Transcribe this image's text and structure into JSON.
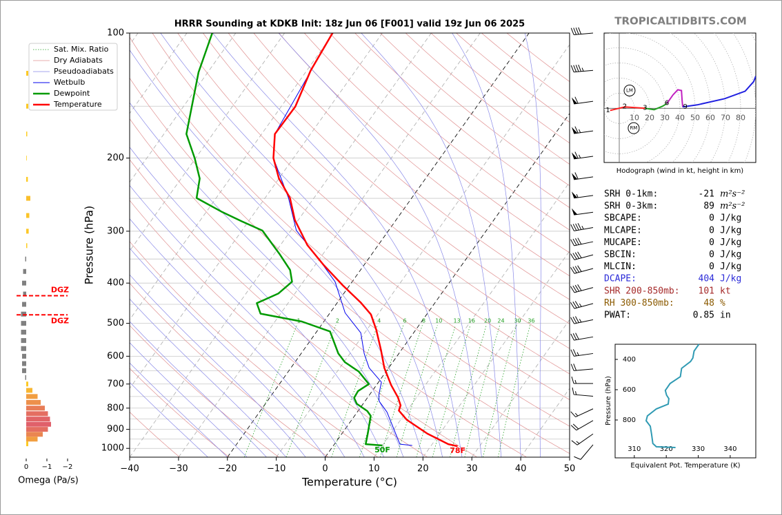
{
  "header": {
    "site": "TROPICALTIDBITS.COM"
  },
  "chart_data": [
    {
      "type": "skewt",
      "title": "HRRR Sounding at KDKB Init: 18z Jun 06 [F001] valid 19z Jun 06 2025",
      "xlabel": "Temperature (°C)",
      "ylabel": "Pressure (hPa)",
      "xlim": [
        -40,
        50
      ],
      "xticks": [
        {
          "value": -40,
          "label": "−40"
        },
        {
          "value": -30,
          "label": "−30"
        },
        {
          "value": -20,
          "label": "−20"
        },
        {
          "value": -10,
          "label": "−10"
        },
        0,
        10,
        20,
        30,
        40,
        50
      ],
      "ylim": [
        1050,
        100
      ],
      "yticks": [
        100,
        200,
        300,
        400,
        500,
        600,
        700,
        800,
        900,
        1000
      ],
      "log_scale": true,
      "grid": true,
      "legend": "upper left",
      "background_lines": [
        {
          "name": "Sat. Mix. Ratio",
          "color": "#22a022",
          "values": [
            1,
            2,
            4,
            6,
            8,
            10,
            13,
            16,
            20,
            24,
            30,
            36
          ]
        },
        {
          "name": "Dry Adiabats",
          "color": "#e09090"
        },
        {
          "name": "Pseudoadiabats",
          "color": "#8888e8"
        }
      ],
      "series": [
        {
          "name": "Wetbulb",
          "color": "#0000ee",
          "pressure": [
            100,
            175,
            200,
            249.6,
            298.6,
            347,
            397,
            472,
            527,
            591,
            640,
            693,
            743,
            770,
            818,
            977,
            984
          ],
          "values": [
            -60.2,
            -57.3,
            -54.1,
            -45.2,
            -38.9,
            -30.6,
            -23.5,
            -16.9,
            -10.8,
            -7.1,
            -4.0,
            0.6,
            1.9,
            2.9,
            6.1,
            13.4,
            16.1
          ]
        },
        {
          "name": "Dewpoint",
          "color": "#009a00",
          "surface_label": "50F",
          "pressure": [
            100,
            124.3,
            175,
            200,
            224,
            249.6,
            269,
            284,
            299,
            341,
            372,
            397,
            424,
            447,
            474,
            495,
            523,
            591,
            620,
            653,
            700,
            728,
            756,
            781,
            813,
            835,
            922,
            977,
            984
          ],
          "values": [
            -84.8,
            -81.9,
            -75.4,
            -70.2,
            -66.2,
            -64.0,
            -57.0,
            -51.4,
            -45.8,
            -38.8,
            -34.4,
            -32.3,
            -33.4,
            -36.4,
            -34.1,
            -24.5,
            -17.3,
            -12.4,
            -9.8,
            -5.6,
            -1.7,
            -2.9,
            -2.7,
            -1.3,
            1.9,
            3.3,
            5.3,
            6.4,
            10.0
          ]
        },
        {
          "name": "Temperature",
          "color": "#ff0000",
          "surface_label": "78F",
          "pressure": [
            100,
            123.3,
            150.4,
            175,
            200,
            224,
            249.6,
            282,
            324,
            361,
            405,
            445,
            476,
            518,
            581,
            640,
            704,
            754,
            788,
            811,
            854,
            922,
            977,
            988
          ],
          "values": [
            -60.2,
            -59.2,
            -57.1,
            -57.3,
            -54.1,
            -50.0,
            -44.9,
            -40.7,
            -34.5,
            -28.4,
            -21.4,
            -15.3,
            -11.4,
            -8.1,
            -4.1,
            -0.9,
            3.0,
            6.2,
            7.9,
            8.3,
            11.3,
            17.5,
            23.3,
            25.5
          ]
        }
      ],
      "wind": {
        "pressure": [
          100,
          123,
          146,
          172,
          198,
          222,
          246,
          270,
          294,
          318,
          342,
          369,
          410,
          448,
          490,
          539,
          591,
          644,
          698,
          749,
          803,
          857,
          923,
          980
        ],
        "speed": [
          40,
          45,
          60,
          65,
          65,
          60,
          55,
          50,
          45,
          40,
          40,
          40,
          40,
          35,
          35,
          30,
          25,
          20,
          15,
          15,
          15,
          20,
          15,
          10
        ],
        "direction": [
          265,
          265,
          262,
          262,
          262,
          262,
          262,
          262,
          260,
          258,
          255,
          255,
          255,
          255,
          258,
          260,
          262,
          265,
          270,
          275,
          245,
          240,
          235,
          220
        ]
      }
    },
    {
      "type": "bar",
      "orientation": "horizontal",
      "xlabel": "Omega (Pa/s)",
      "xlim": [
        0.5,
        -2.5
      ],
      "xticks": [
        0,
        {
          "value": -1,
          "label": "−1"
        },
        {
          "value": -2,
          "label": "−2"
        }
      ],
      "pressure": [
        125,
        150,
        175,
        200,
        225,
        250,
        275,
        300,
        325,
        350,
        375,
        400,
        425,
        450,
        475,
        500,
        525,
        550,
        575,
        600,
        625,
        650,
        675,
        700,
        725,
        750,
        775,
        800,
        825,
        850,
        875,
        900,
        925,
        950,
        975
      ],
      "values": [
        -0.1,
        -0.1,
        -0.05,
        -0.02,
        -0.08,
        -0.2,
        -0.15,
        -0.12,
        -0.05,
        0.05,
        0.15,
        0.2,
        0.15,
        0.2,
        0.25,
        0.25,
        0.25,
        0.25,
        0.25,
        0.2,
        0.2,
        0.2,
        0.05,
        -0.1,
        -0.3,
        -0.55,
        -0.7,
        -0.9,
        -1.05,
        -1.15,
        -1.2,
        -1.05,
        -0.8,
        -0.55,
        -0.1
      ],
      "colors": {
        "positive": "#808080",
        "negative_low": "#ffd21f",
        "negative_high": "#e0606a"
      },
      "dgz": {
        "pressure": [
          429,
          477
        ],
        "labels": [
          "DGZ",
          "DGZ"
        ],
        "color": "#ff0000"
      }
    },
    {
      "type": "hodograph",
      "caption": "Hodograph (wind in kt, height in km)",
      "xlim": [
        -10,
        90
      ],
      "ylim": [
        -36,
        50
      ],
      "xticks": [
        10,
        20,
        30,
        40,
        50,
        60,
        70,
        80
      ],
      "segments": [
        {
          "color": "#ff2020",
          "u": [
            -6,
            3.6,
            17
          ],
          "v": [
            -1.4,
            0.9,
            0
          ]
        },
        {
          "color": "#22a022",
          "u": [
            17,
            23,
            28.6,
            31.4
          ],
          "v": [
            0,
            -0.9,
            1.4,
            3.2
          ]
        },
        {
          "color": "#c020c0",
          "u": [
            31.4,
            35.5,
            38.6,
            41,
            41.4,
            41.8
          ],
          "v": [
            3.2,
            9,
            12.3,
            11.8,
            5.5,
            0.9
          ]
        },
        {
          "color": "#2020e0",
          "u": [
            41.8,
            51.4,
            69.5,
            83,
            88.6,
            90
          ],
          "v": [
            0.9,
            2.3,
            6.4,
            11.4,
            17.7,
            21.4
          ]
        }
      ],
      "height_labels": [
        {
          "label": "1",
          "u": -7.5,
          "v": -1.8
        },
        {
          "label": "2",
          "u": 3.6,
          "v": 0.9
        },
        {
          "label": "3",
          "u": 17,
          "v": 0
        },
        {
          "label": "6",
          "u": 31.4,
          "v": 3.2
        },
        {
          "label": "9",
          "u": 43.5,
          "v": 0.6
        }
      ],
      "storm_motion": [
        {
          "label": "LM",
          "u": 6.8,
          "v": 11.8
        },
        {
          "label": "RM",
          "u": 9.5,
          "v": -13.2
        }
      ]
    },
    {
      "type": "line",
      "xlabel": "Equivalent Pot. Temperature (K)",
      "ylabel": "Pressure (hPa)",
      "xlim": [
        304,
        348
      ],
      "ylim": [
        1050,
        300
      ],
      "xticks": [
        310,
        320,
        330,
        340
      ],
      "yticks": [
        400,
        600,
        800
      ],
      "color": "#2f9ab3",
      "pressure": [
        300,
        345,
        391,
        414,
        459,
        514,
        559,
        605,
        636,
        659,
        695,
        727,
        773,
        805,
        841,
        895,
        955,
        977,
        982
      ],
      "values": [
        330.2,
        328.7,
        328.3,
        327.6,
        324.8,
        324.4,
        321.2,
        319.7,
        320.1,
        320.8,
        320.6,
        316.9,
        314.1,
        313.7,
        315.0,
        315.4,
        315.8,
        316.9,
        322.9
      ]
    }
  ],
  "stats": {
    "rows": [
      {
        "label": "SRH 0-1km:",
        "value": -21,
        "unit": "m²s⁻²",
        "color": "#000000"
      },
      {
        "label": "SRH 0-3km:",
        "value": 89,
        "unit": "m²s⁻²",
        "color": "#000000"
      },
      {
        "label": "SBCAPE:",
        "value": 0,
        "unit": "J/kg",
        "color": "#000000"
      },
      {
        "label": "MLCAPE:",
        "value": 0,
        "unit": "J/kg",
        "color": "#000000"
      },
      {
        "label": "MUCAPE:",
        "value": 0,
        "unit": "J/kg",
        "color": "#000000"
      },
      {
        "label": "SBCIN:",
        "value": 0,
        "unit": "J/kg",
        "color": "#000000"
      },
      {
        "label": "MLCIN:",
        "value": 0,
        "unit": "J/kg",
        "color": "#000000"
      },
      {
        "label": "DCAPE:",
        "value": 404,
        "unit": "J/kg",
        "color": "#2a2ad8"
      },
      {
        "label": "SHR 200-850mb:",
        "value": 101,
        "unit": "kt",
        "color": "#a52a2a"
      },
      {
        "label": "RH 300-850mb:",
        "value": 48,
        "unit": "%",
        "color": "#8b5a00"
      },
      {
        "label": "PWAT:",
        "value": 0.85,
        "unit": "in",
        "color": "#000000"
      }
    ]
  }
}
